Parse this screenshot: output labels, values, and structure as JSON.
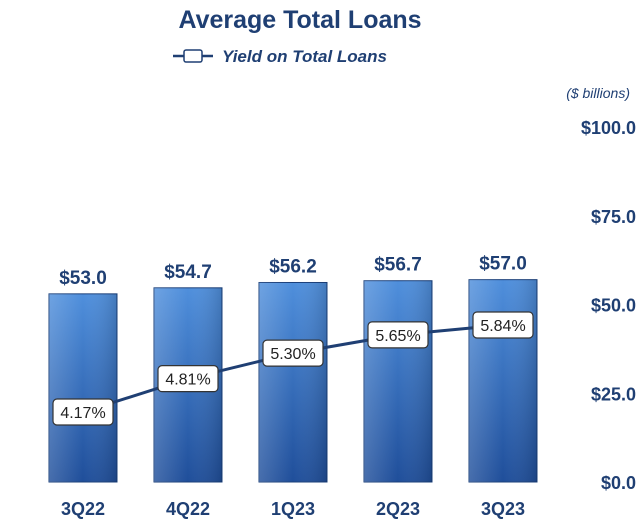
{
  "chart_data": {
    "type": "bar",
    "title": "Average Total Loans",
    "unit_label": "($ billions)",
    "categories": [
      "3Q22",
      "4Q22",
      "1Q23",
      "2Q23",
      "3Q23"
    ],
    "series": [
      {
        "kind": "bar",
        "values": [
          53.0,
          54.7,
          56.2,
          56.7,
          57.0
        ],
        "data_labels": [
          "$53.0",
          "$54.7",
          "$56.2",
          "$56.7",
          "$57.0"
        ]
      },
      {
        "name": "Yield on Total Loans",
        "kind": "line",
        "values": [
          4.17,
          4.81,
          5.3,
          5.65,
          5.84
        ],
        "data_labels": [
          "4.17%",
          "4.81%",
          "5.30%",
          "5.65%",
          "5.84%"
        ]
      }
    ],
    "yaxis": {
      "ticks": [
        0,
        25,
        50,
        75,
        100
      ],
      "tick_labels": [
        "$0.0",
        "$25.0",
        "$50.0",
        "$75.0",
        "$100.0"
      ],
      "ylim": [
        0,
        100
      ],
      "side": "right"
    },
    "legend_position": "top-center",
    "grid": false,
    "colors": {
      "bar": "#3a78c9",
      "bar_dark": "#1f4e9a",
      "line": "#1f3f73",
      "text": "#1f3f73"
    }
  }
}
